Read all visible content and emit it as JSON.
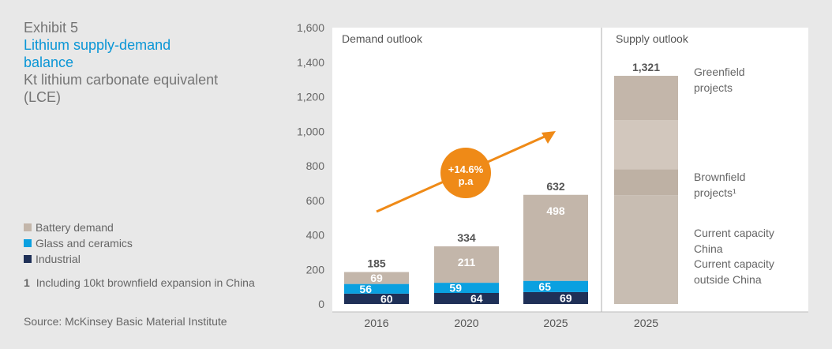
{
  "header": {
    "exhibit": "Exhibit 5",
    "title": "Lithium supply-demand balance",
    "subtitle": "Kt lithium carbonate equivalent (LCE)"
  },
  "legend": [
    {
      "name": "Battery demand",
      "color": "#c3b6aa"
    },
    {
      "name": "Glass and ceramics",
      "color": "#0aa0e0"
    },
    {
      "name": "Industrial",
      "color": "#1f3057"
    }
  ],
  "footnote": {
    "number": "1",
    "text": "Including 10kt brownfield expansion in China"
  },
  "source": "Source: McKinsey Basic Material Institute",
  "chart_data": {
    "type": "bar",
    "stacked": true,
    "ylim": [
      0,
      1600
    ],
    "yticks": [
      0,
      200,
      400,
      600,
      800,
      1000,
      1200,
      1400,
      1600
    ],
    "ytick_labels": [
      "0",
      "200",
      "400",
      "600",
      "800",
      "1,000",
      "1,200",
      "1,400",
      "1,600"
    ],
    "grid": false,
    "demand": {
      "title": "Demand outlook",
      "categories": [
        "2016",
        "2020",
        "2025"
      ],
      "series": [
        {
          "name": "Industrial",
          "values": [
            60,
            64,
            69
          ],
          "color": "#1f3057"
        },
        {
          "name": "Glass and ceramics",
          "values": [
            56,
            59,
            65
          ],
          "color": "#0aa0e0"
        },
        {
          "name": "Battery demand",
          "values": [
            69,
            211,
            498
          ],
          "color": "#c3b6aa"
        }
      ],
      "totals": [
        185,
        334,
        632
      ],
      "total_labels": [
        "185",
        "334",
        "632"
      ],
      "cagr": {
        "value": "+14.6%",
        "unit": "p.a"
      }
    },
    "supply": {
      "title": "Supply outlook",
      "category": "2025",
      "total": 1321,
      "total_label": "1,321",
      "segments": [
        {
          "name": "Current capacity outside China",
          "lines": [
            "Current capacity",
            "outside China"
          ],
          "value": 630,
          "color": "#c8bdb2"
        },
        {
          "name": "Current capacity China",
          "lines": [
            "Current capacity",
            "China"
          ],
          "value": 150,
          "color": "#beb1a4"
        },
        {
          "name": "Brownfield projects",
          "lines": [
            "Brownfield",
            "projects¹"
          ],
          "value": 285,
          "color": "#d2c7bd"
        },
        {
          "name": "Greenfield projects",
          "lines": [
            "Greenfield",
            "projects"
          ],
          "value": 256,
          "color": "#c3b6aa"
        }
      ]
    }
  }
}
